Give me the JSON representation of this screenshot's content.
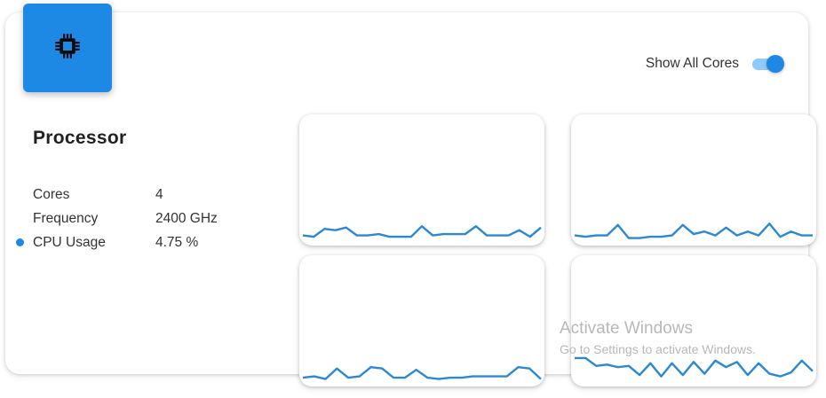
{
  "icon": "cpu-chip-icon",
  "accent_color": "#1e88e5",
  "toggle": {
    "label": "Show All Cores",
    "on": true
  },
  "processor": {
    "title": "Processor",
    "specs": [
      {
        "label": "Cores",
        "value": "4"
      },
      {
        "label": "Frequency",
        "value": "2400 GHz"
      },
      {
        "label": "CPU Usage",
        "value": "4.75 %"
      }
    ]
  },
  "cores": [
    {
      "usage": [
        5,
        4,
        10,
        9,
        11,
        5,
        5,
        6,
        4,
        4,
        4,
        12,
        5,
        6,
        6,
        6,
        12,
        5,
        5,
        5,
        9,
        4,
        11
      ]
    },
    {
      "usage": [
        5,
        4,
        5,
        5,
        13,
        3,
        3,
        4,
        4,
        5,
        13,
        6,
        8,
        5,
        11,
        5,
        8,
        5,
        14,
        4,
        8,
        5,
        5
      ]
    },
    {
      "usage": [
        4,
        5,
        3,
        11,
        4,
        5,
        12,
        11,
        4,
        4,
        10,
        4,
        3,
        4,
        4,
        5,
        5,
        5,
        5,
        12,
        11,
        3
      ]
    },
    {
      "usage": [
        19,
        19,
        13,
        14,
        12,
        13,
        6,
        15,
        5,
        15,
        6,
        16,
        7,
        17,
        12,
        16,
        6,
        15,
        7,
        5,
        8,
        17,
        9
      ]
    }
  ],
  "watermark": {
    "title": "Activate Windows",
    "subtitle": "Go to Settings to activate Windows."
  }
}
